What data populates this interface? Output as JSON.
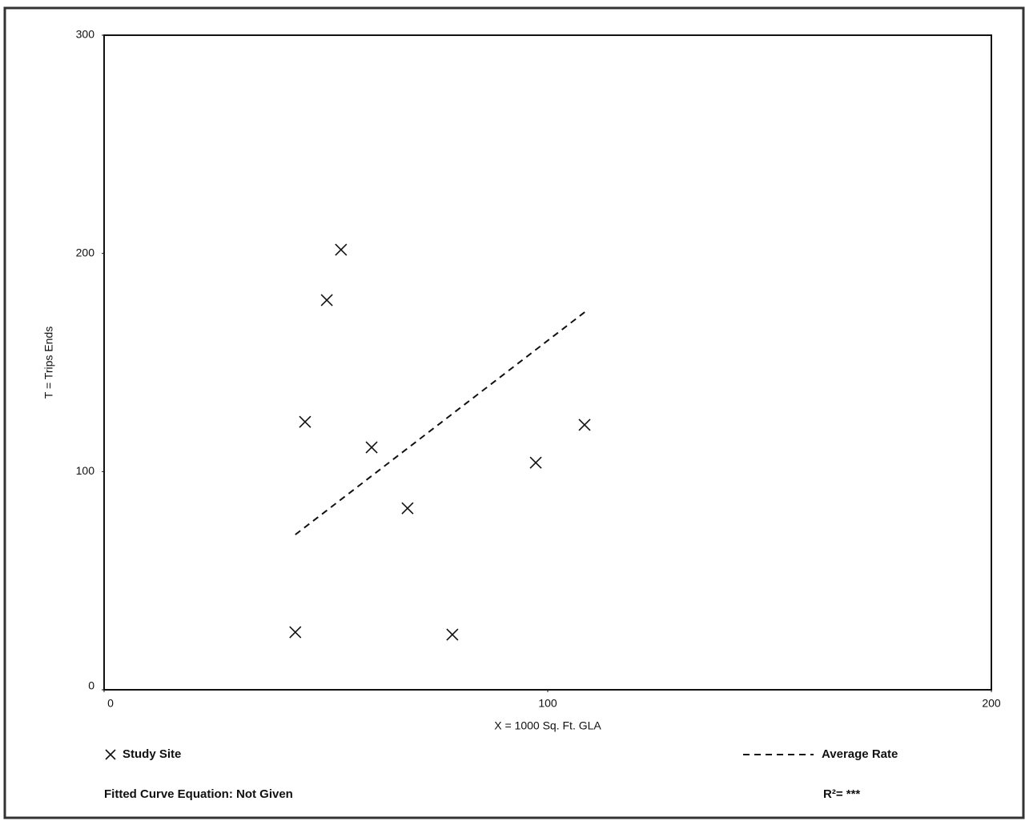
{
  "chart_data": {
    "type": "scatter",
    "x_label": "X = 1000 Sq. Ft. GLA",
    "y_label": "T = Trips Ends",
    "xlim": [
      0,
      200
    ],
    "xticks": [
      0,
      100,
      200
    ],
    "ylim": [
      0,
      300
    ],
    "yticks": [
      0,
      100,
      200,
      300
    ],
    "grid": false,
    "series": [
      {
        "name": "Study Site",
        "color": "#111111",
        "marker": "x",
        "x": [
          43.1,
          50.2,
          53.4,
          45.3,
          60.3,
          68.4,
          78.5,
          97.3,
          108.3
        ],
        "values": [
          26.4,
          178.6,
          201.7,
          122.8,
          111.1,
          83.2,
          25.3,
          104.1,
          121.4
        ]
      },
      {
        "name": "Average Rate",
        "color": "#111111",
        "marker": "dashed-line",
        "x": [
          43.1,
          108.8
        ],
        "values": [
          71.1,
          173.8
        ]
      }
    ],
    "annotations": [
      "Fitted Curve Equation: Not Given",
      "R²= ***"
    ]
  }
}
